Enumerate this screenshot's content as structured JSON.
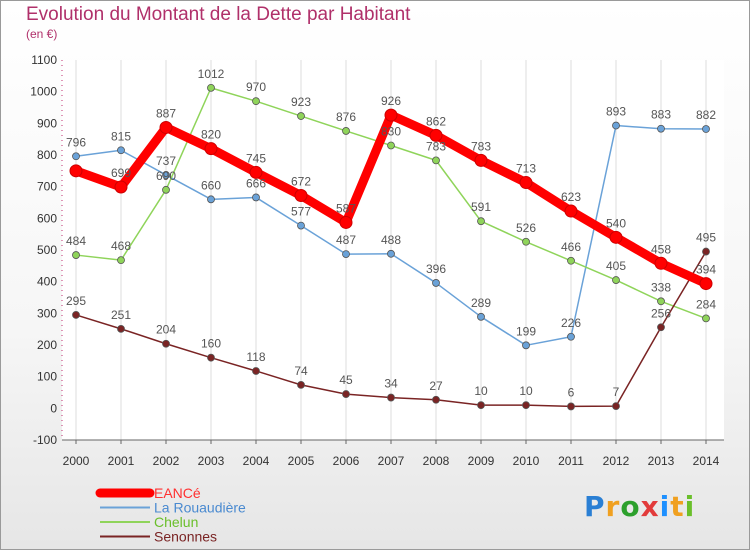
{
  "header": {
    "title": "Evolution du Montant de la Dette par Habitant",
    "subtitle": "(en €)"
  },
  "logo": {
    "text": "Proxiti",
    "colors": [
      "#2a7fd4",
      "#f0a020",
      "#2ca02c",
      "#e23b3b",
      "#1e90ff",
      "#f0a020",
      "#6abf2a"
    ]
  },
  "chart_data": {
    "type": "line",
    "categories": [
      "2000",
      "2001",
      "2002",
      "2003",
      "2004",
      "2005",
      "2006",
      "2007",
      "2008",
      "2009",
      "2010",
      "2011",
      "2012",
      "2013",
      "2014"
    ],
    "ylim": [
      -100,
      1100
    ],
    "yticks": [
      -100,
      0,
      100,
      200,
      300,
      400,
      500,
      600,
      700,
      800,
      900,
      1000,
      1100
    ],
    "legend_placement": "bottom-left",
    "grid": "vertical",
    "series": [
      {
        "name": "EANCé",
        "color": "#ff0000",
        "values": [
          750,
          699,
          887,
          820,
          745,
          672,
          587,
          926,
          862,
          783,
          713,
          623,
          540,
          458,
          394
        ],
        "labels": [
          "",
          "699",
          "887",
          "820",
          "745",
          "672",
          "587",
          "926",
          "862",
          "783",
          "713",
          "623",
          "540",
          "458",
          "394"
        ]
      },
      {
        "name": "La Rouaudière",
        "color": "#6aa2d8",
        "values": [
          796,
          815,
          737,
          660,
          666,
          577,
          487,
          488,
          396,
          289,
          199,
          226,
          893,
          883,
          882
        ],
        "labels": [
          "796",
          "815",
          "737",
          "660",
          "666",
          "577",
          "487",
          "488",
          "396",
          "289",
          "199",
          "226",
          "893",
          "883",
          "882"
        ]
      },
      {
        "name": "Chelun",
        "color": "#8fd45a",
        "values": [
          484,
          468,
          690,
          1012,
          970,
          923,
          876,
          830,
          783,
          591,
          526,
          466,
          405,
          338,
          284
        ],
        "labels": [
          "484",
          "468",
          "690",
          "1012",
          "970",
          "923",
          "876",
          "830",
          "783",
          "591",
          "526",
          "466",
          "405",
          "338",
          "284"
        ]
      },
      {
        "name": "Senonnes",
        "color": "#7a2424",
        "values": [
          295,
          251,
          204,
          160,
          118,
          74,
          45,
          34,
          27,
          10,
          10,
          6,
          7,
          256,
          495
        ],
        "labels": [
          "295",
          "251",
          "204",
          "160",
          "118",
          "74",
          "45",
          "34",
          "27",
          "10",
          "10",
          "6",
          "7",
          "256",
          "495"
        ]
      }
    ]
  }
}
